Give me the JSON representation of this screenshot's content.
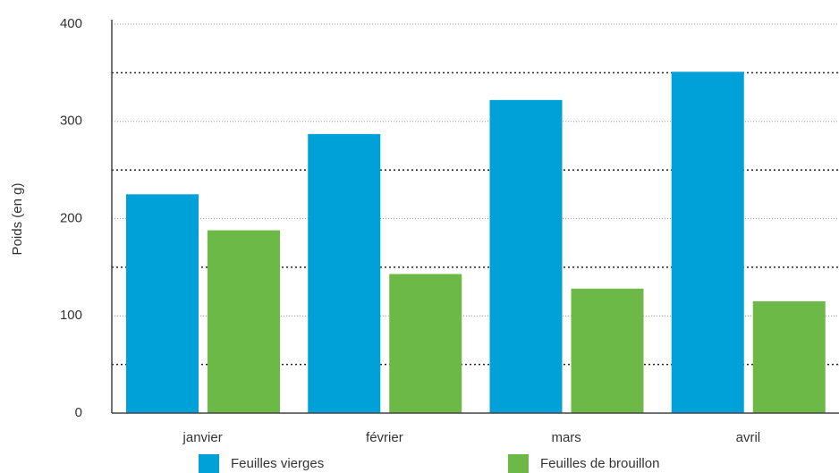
{
  "chart_data": {
    "type": "bar",
    "y_label": "Poids (en g)",
    "categories": [
      "janvier",
      "février",
      "mars",
      "avril"
    ],
    "series": [
      {
        "name": "Feuilles vierges",
        "color": "#00a0d8",
        "values": [
          225,
          287,
          322,
          351
        ]
      },
      {
        "name": "Feuilles de brouillon",
        "color": "#6cb947",
        "values": [
          188,
          143,
          128,
          115
        ]
      }
    ],
    "ylim": [
      0,
      400
    ],
    "yticks": [
      0,
      100,
      200,
      300,
      400
    ],
    "yticks_minor": [
      50,
      150,
      250,
      350
    ],
    "grid": true,
    "legend": "bottom"
  }
}
